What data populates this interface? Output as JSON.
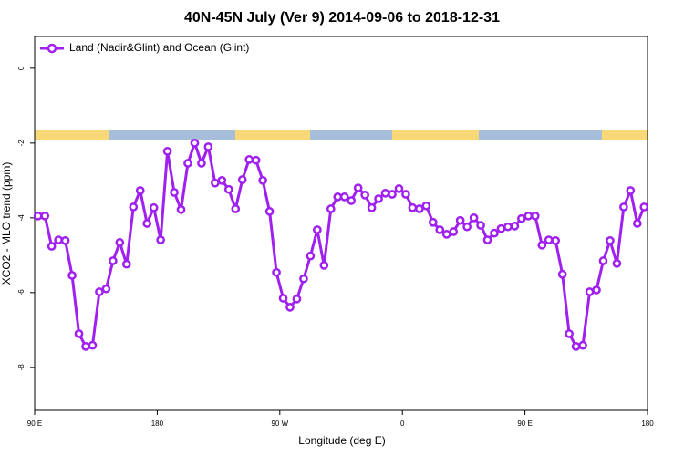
{
  "chart_data": {
    "type": "line",
    "title": "40N-45N July (Ver 9)   2014-09-06 to 2018-12-31",
    "x_label": "Longitude (deg E)",
    "y_label": "XCO2 - MLO trend (ppm)",
    "legend_position": "top-left",
    "xlim": [
      90,
      540
    ],
    "ylim": [
      -9.15,
      0.85
    ],
    "xticks": [
      {
        "value": 90,
        "label": "90 E"
      },
      {
        "value": 180,
        "label": "180"
      },
      {
        "value": 270,
        "label": "90 W"
      },
      {
        "value": 360,
        "label": "0"
      },
      {
        "value": 450,
        "label": "90 E"
      },
      {
        "value": 540,
        "label": "180"
      }
    ],
    "yticks": [
      0,
      -2,
      -4,
      -6,
      -8
    ],
    "x": [
      92.5,
      97.5,
      102.5,
      107.5,
      112.5,
      117.5,
      122.5,
      127.5,
      132.5,
      137.5,
      142.5,
      147.5,
      152.5,
      157.5,
      162.5,
      167.5,
      172.5,
      177.5,
      182.5,
      187.5,
      192.5,
      197.5,
      202.5,
      207.5,
      212.5,
      217.5,
      222.5,
      227.5,
      232.5,
      237.5,
      242.5,
      247.5,
      252.5,
      257.5,
      262.5,
      267.5,
      272.5,
      277.5,
      282.5,
      287.5,
      292.5,
      297.5,
      302.5,
      307.5,
      312.5,
      317.5,
      322.5,
      327.5,
      332.5,
      337.5,
      342.5,
      347.5,
      352.5,
      357.5,
      362.5,
      367.5,
      372.5,
      377.5,
      382.5,
      387.5,
      392.5,
      397.5,
      402.5,
      407.5,
      412.5,
      417.5,
      422.5,
      427.5,
      432.5,
      437.5,
      442.5,
      447.5,
      452.5,
      457.5,
      462.5,
      467.5,
      472.5,
      477.5,
      482.5,
      487.5,
      492.5,
      497.5,
      502.5,
      507.5,
      512.5,
      517.5,
      522.5,
      527.5,
      532.5,
      537.5
    ],
    "series": [
      {
        "name": "Land (Nadir&Glint) and Ocean (Glint)",
        "color": "#a020f0",
        "values": [
          -3.95,
          -3.95,
          -4.76,
          -4.59,
          -4.61,
          -5.54,
          -7.1,
          -7.44,
          -7.41,
          -5.98,
          -5.9,
          -5.15,
          -4.66,
          -5.24,
          -3.71,
          -3.27,
          -4.15,
          -3.73,
          -4.59,
          -2.22,
          -3.32,
          -3.78,
          -2.54,
          -2.0,
          -2.54,
          -2.1,
          -3.07,
          -3.0,
          -3.24,
          -3.76,
          -2.98,
          -2.44,
          -2.46,
          -3.0,
          -3.83,
          -5.46,
          -6.15,
          -6.39,
          -6.17,
          -5.63,
          -5.02,
          -4.32,
          -5.27,
          -3.76,
          -3.44,
          -3.44,
          -3.54,
          -3.2,
          -3.39,
          -3.73,
          -3.49,
          -3.34,
          -3.37,
          -3.22,
          -3.37,
          -3.73,
          -3.76,
          -3.68,
          -4.12,
          -4.32,
          -4.44,
          -4.37,
          -4.07,
          -4.24,
          -4.0,
          -4.2,
          -4.59,
          -4.41,
          -4.29,
          -4.24,
          -4.22,
          -4.02,
          -3.95,
          -3.95,
          -4.73,
          -4.59,
          -4.61,
          -5.51,
          -7.1,
          -7.44,
          -7.41,
          -5.98,
          -5.93,
          -5.15,
          -4.61,
          -5.22,
          -3.71,
          -3.27,
          -4.15,
          -3.71
        ]
      }
    ]
  }
}
